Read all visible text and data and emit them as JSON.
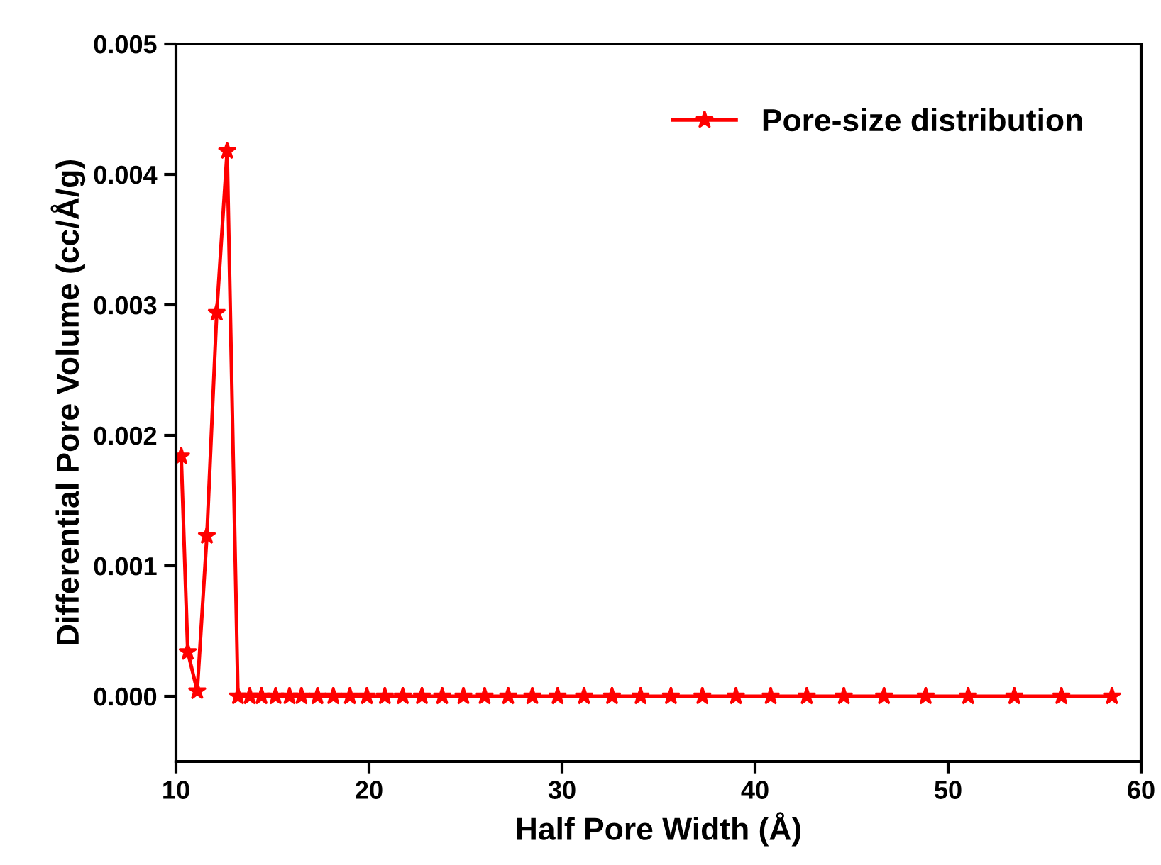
{
  "chart_data": {
    "type": "line",
    "xlabel": "Half Pore Width (Å)",
    "ylabel": "Differential Pore Volume (cc/Å/g)",
    "xlim": [
      10,
      60
    ],
    "xticks": [
      10,
      20,
      30,
      40,
      50,
      60
    ],
    "ylim": [
      -0.0005,
      0.005
    ],
    "yticks": [
      {
        "value": 0,
        "label": "0.000"
      },
      {
        "value": 0.001,
        "label": "0.001"
      },
      {
        "value": 0.002,
        "label": "0.002"
      },
      {
        "value": 0.003,
        "label": "0.003"
      },
      {
        "value": 0.004,
        "label": "0.004"
      },
      {
        "value": 0.005,
        "label": "0.005"
      }
    ],
    "grid": false,
    "legend": "top right",
    "marker": "star",
    "line_style": "solid",
    "series": [
      {
        "name": "Pore-size distribution",
        "color": "#ff0000",
        "x": [
          10.27,
          10.61,
          11.1,
          11.6,
          12.11,
          12.65,
          13.21,
          13.82,
          14.43,
          15.16,
          15.88,
          16.5,
          17.33,
          18.15,
          19.01,
          19.89,
          20.82,
          21.75,
          22.74,
          23.79,
          24.89,
          25.99,
          27.21,
          28.46,
          29.77,
          31.14,
          32.59,
          34.07,
          35.64,
          37.27,
          39.01,
          40.81,
          42.68,
          44.6,
          46.68,
          48.84,
          51.04,
          53.43,
          55.87,
          58.49
        ],
        "values": [
          0.00184,
          0.00034,
          4e-05,
          0.00123,
          0.00294,
          0.00418,
          0,
          0,
          0,
          0,
          0,
          0,
          0,
          0,
          0,
          0,
          0,
          0,
          0,
          0,
          0,
          0,
          0,
          0,
          0,
          0,
          0,
          0,
          0,
          0,
          0,
          0,
          0,
          0,
          0,
          0,
          0,
          0,
          0,
          0
        ]
      }
    ]
  }
}
